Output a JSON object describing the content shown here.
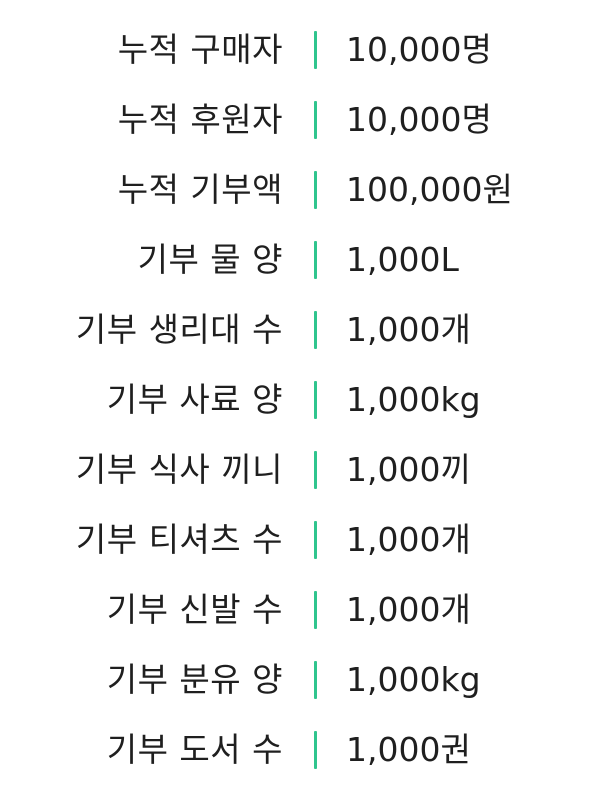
{
  "accent_color": "#2fc58e",
  "stats": [
    {
      "label": "누적 구매자",
      "value": "10,000명"
    },
    {
      "label": "누적 후원자",
      "value": "10,000명"
    },
    {
      "label": "누적 기부액",
      "value": "100,000원"
    },
    {
      "label": "기부 물 양",
      "value": "1,000L"
    },
    {
      "label": "기부 생리대 수",
      "value": "1,000개"
    },
    {
      "label": "기부 사료 양",
      "value": "1,000kg"
    },
    {
      "label": "기부 식사 끼니",
      "value": "1,000끼"
    },
    {
      "label": "기부 티셔츠 수",
      "value": "1,000개"
    },
    {
      "label": "기부 신발 수",
      "value": "1,000개"
    },
    {
      "label": "기부 분유 양",
      "value": "1,000kg"
    },
    {
      "label": "기부 도서 수",
      "value": "1,000권"
    }
  ]
}
